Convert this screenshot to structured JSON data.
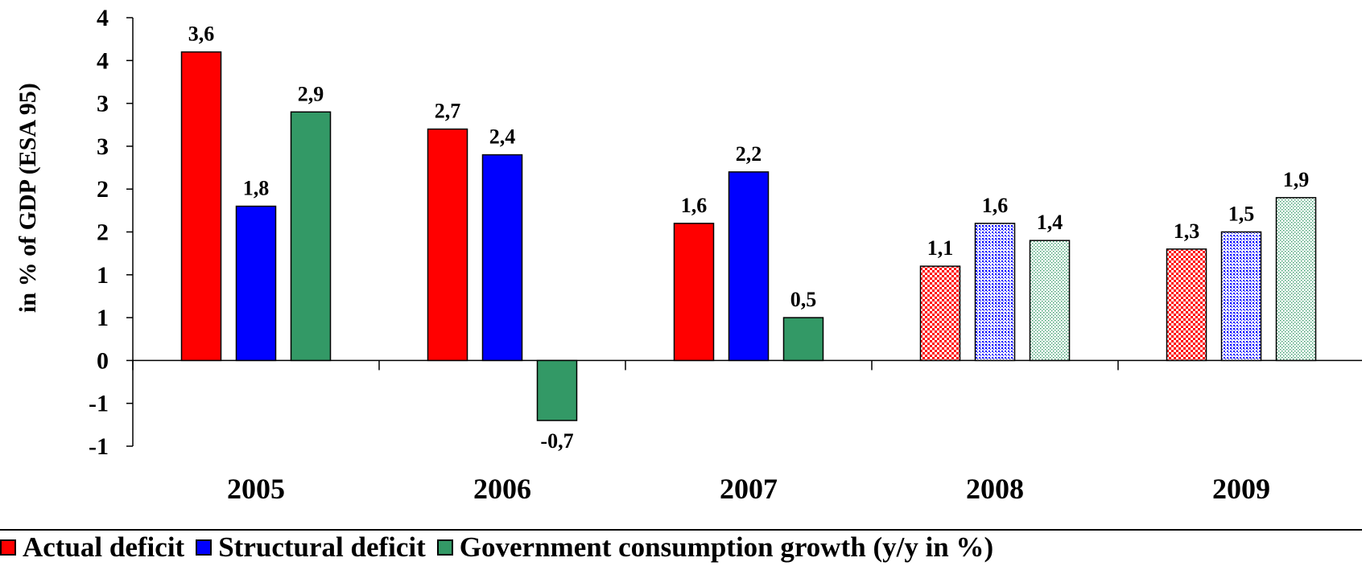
{
  "chart_data": {
    "type": "bar",
    "ylabel": "in % of GDP (ESA 95)",
    "xlabel": "",
    "categories": [
      "2005",
      "2006",
      "2007",
      "2008",
      "2009"
    ],
    "ylim": [
      -1,
      4
    ],
    "y_ticks": [
      -1,
      -0.5,
      0,
      0.5,
      1,
      1.5,
      2,
      2.5,
      3,
      3.5,
      4
    ],
    "y_tick_labels": [
      "-1",
      "-1",
      "0",
      "1",
      "1",
      "2",
      "2",
      "3",
      "3",
      "4",
      "4"
    ],
    "series": [
      {
        "name": "Actual deficit",
        "color": "#ff0000",
        "values": [
          3.6,
          2.7,
          1.6,
          1.1,
          1.3
        ],
        "labels": [
          "3,6",
          "2,7",
          "1,6",
          "1,1",
          "1,3"
        ],
        "pattern": [
          false,
          false,
          false,
          true,
          true
        ]
      },
      {
        "name": "Structural deficit",
        "color": "#0000ff",
        "values": [
          1.8,
          2.4,
          2.2,
          1.6,
          1.5
        ],
        "labels": [
          "1,8",
          "2,4",
          "2,2",
          "1,6",
          "1,5"
        ],
        "pattern": [
          false,
          false,
          false,
          true,
          true
        ]
      },
      {
        "name": "Government consumption growth (y/y in %)",
        "color": "#339966",
        "values": [
          2.9,
          -0.7,
          0.5,
          1.4,
          1.9
        ],
        "labels": [
          "2,9",
          "-0,7",
          "0,5",
          "1,4",
          "1,9"
        ],
        "pattern": [
          false,
          false,
          false,
          true,
          true
        ]
      }
    ],
    "legend": "bottom",
    "grid": false
  }
}
